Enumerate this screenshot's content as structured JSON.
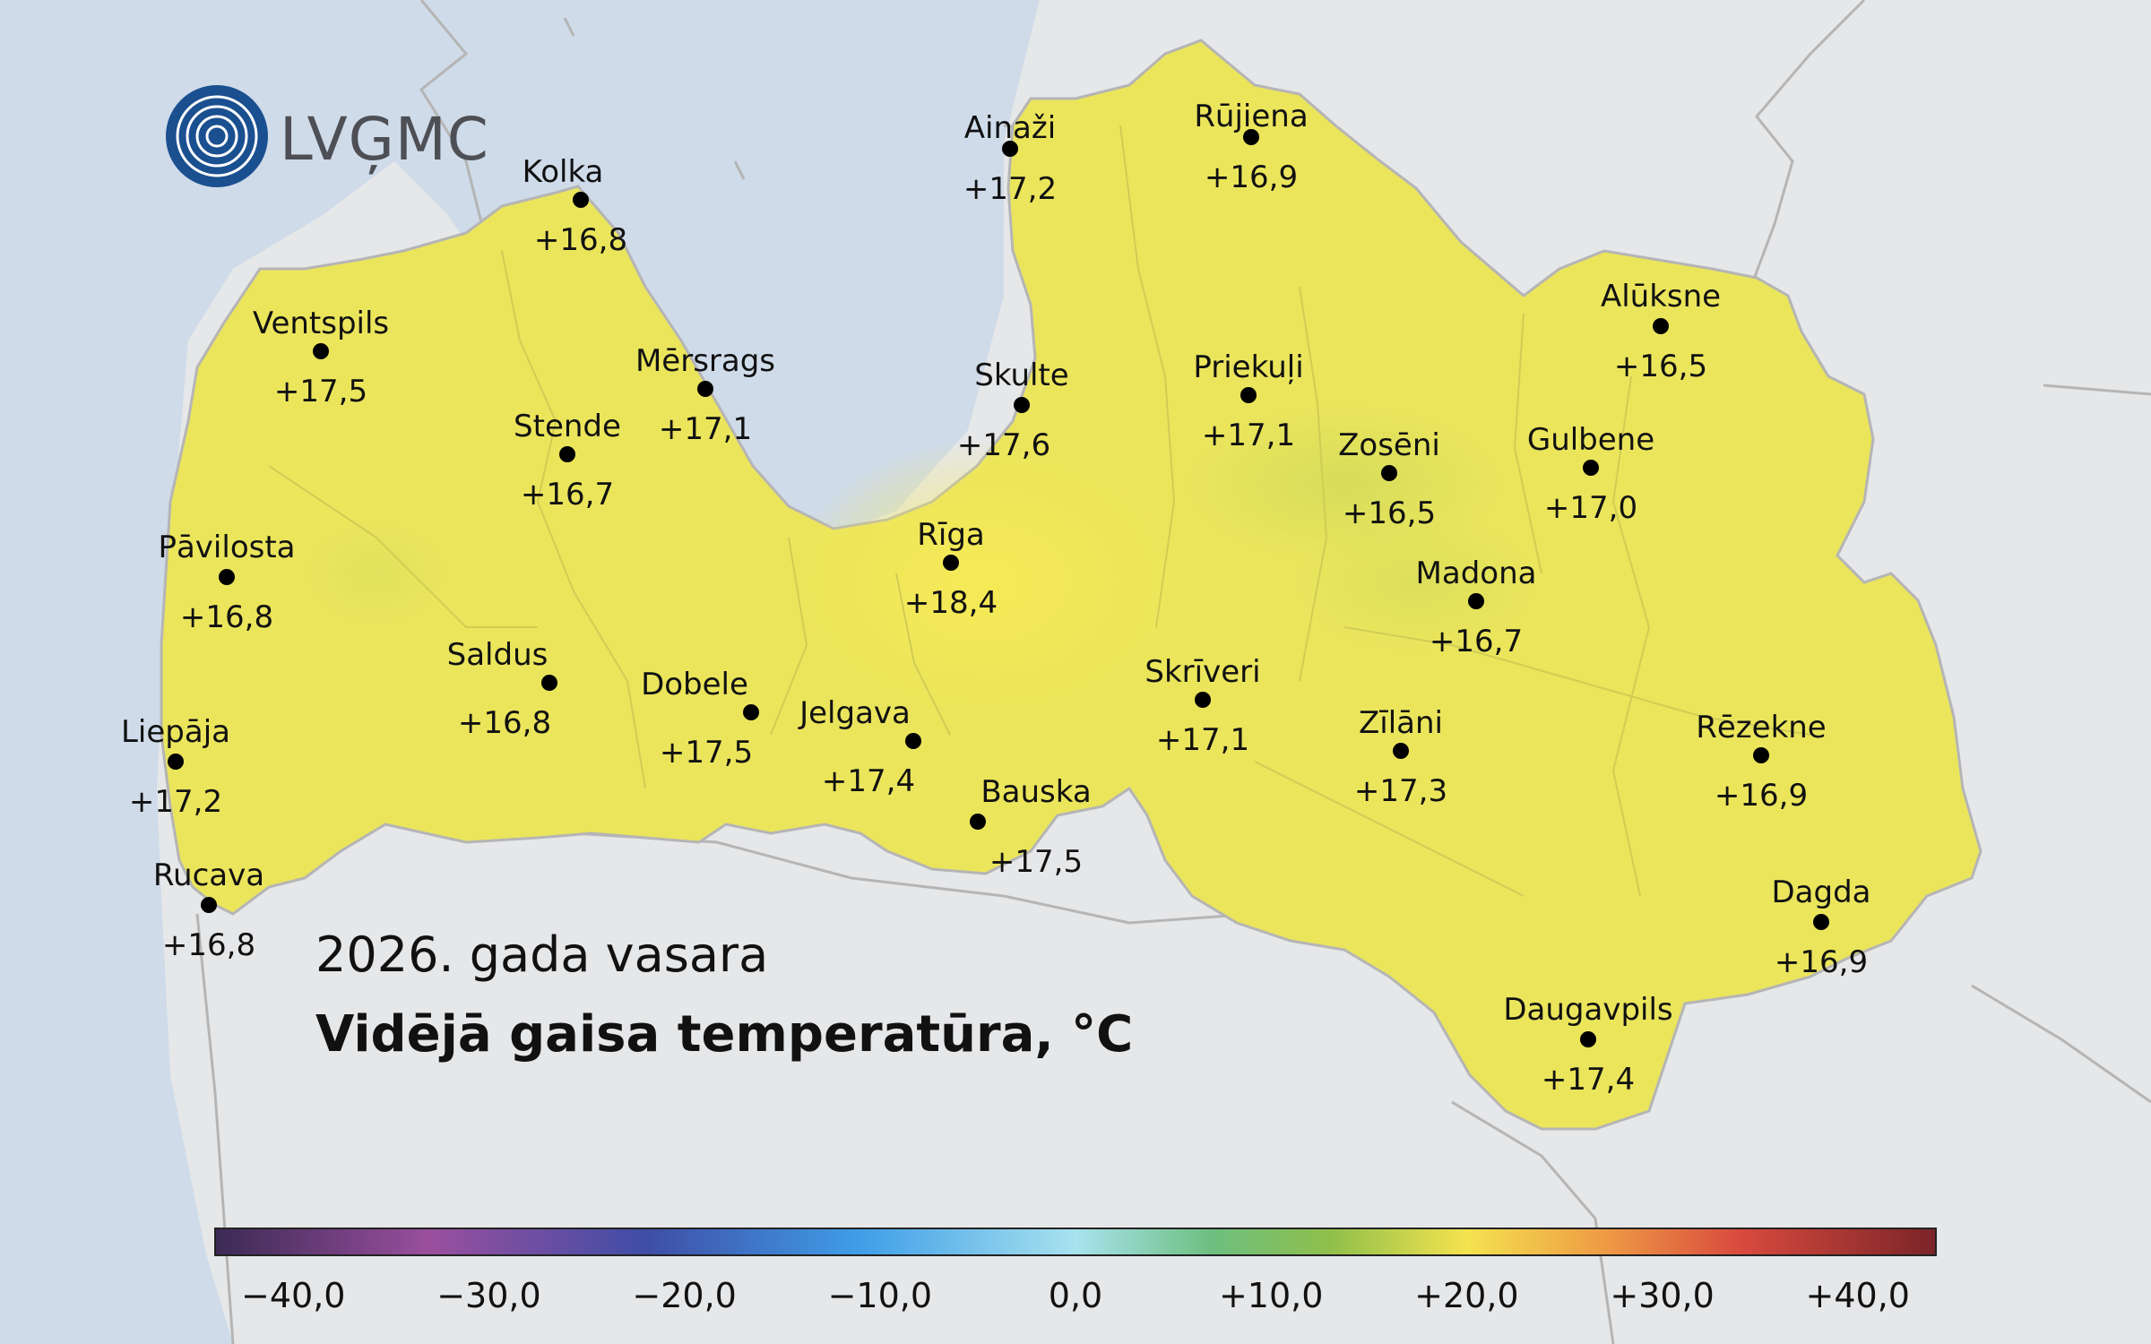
{
  "logo": {
    "text": "LVĢMC",
    "icon": "wave-circle-logo"
  },
  "subtitle": "2026. gada vasara",
  "title": "Vidējā gaisa temperatūra, °C",
  "colors": {
    "sea": "#cfdbe9",
    "land_other": "#e6e7e9",
    "latvia_fill": "#ebe55c",
    "border": "#b5b5b5"
  },
  "stations": [
    {
      "name": "Ainaži",
      "value": "+17,2"
    },
    {
      "name": "Rūjiena",
      "value": "+16,9"
    },
    {
      "name": "Kolka",
      "value": "+16,8"
    },
    {
      "name": "Ventspils",
      "value": "+17,5"
    },
    {
      "name": "Mērsrags",
      "value": "+17,1"
    },
    {
      "name": "Skulte",
      "value": "+17,6"
    },
    {
      "name": "Priekuļi",
      "value": "+17,1"
    },
    {
      "name": "Alūksne",
      "value": "+16,5"
    },
    {
      "name": "Stende",
      "value": "+16,7"
    },
    {
      "name": "Zosēni",
      "value": "+16,5"
    },
    {
      "name": "Gulbene",
      "value": "+17,0"
    },
    {
      "name": "Pāvilosta",
      "value": "+16,8"
    },
    {
      "name": "Rīga",
      "value": "+18,4"
    },
    {
      "name": "Madona",
      "value": "+16,7"
    },
    {
      "name": "Saldus",
      "value": "+16,8"
    },
    {
      "name": "Dobele",
      "value": "+17,5"
    },
    {
      "name": "Skrīveri",
      "value": "+17,1"
    },
    {
      "name": "Jelgava",
      "value": "+17,4"
    },
    {
      "name": "Zīlāni",
      "value": "+17,3"
    },
    {
      "name": "Rēzekne",
      "value": "+16,9"
    },
    {
      "name": "Liepāja",
      "value": "+17,2"
    },
    {
      "name": "Bauska",
      "value": "+17,5"
    },
    {
      "name": "Rucava",
      "value": "+16,8"
    },
    {
      "name": "Dagda",
      "value": "+16,9"
    },
    {
      "name": "Daugavpils",
      "value": "+17,4"
    }
  ],
  "colorbar": {
    "min": -44,
    "max": 44,
    "ticks": [
      {
        "value": -40,
        "label": "−40,0"
      },
      {
        "value": -30,
        "label": "−30,0"
      },
      {
        "value": -20,
        "label": "−20,0"
      },
      {
        "value": -10,
        "label": "−10,0"
      },
      {
        "value": 0,
        "label": "0,0"
      },
      {
        "value": 10,
        "label": "+10,0"
      },
      {
        "value": 20,
        "label": "+20,0"
      },
      {
        "value": 30,
        "label": "+30,0"
      },
      {
        "value": 40,
        "label": "+40,0"
      }
    ],
    "stops": [
      {
        "value": -44,
        "color": "#3b2a54"
      },
      {
        "value": -33,
        "color": "#9a4f9e"
      },
      {
        "value": -22,
        "color": "#3f4da6"
      },
      {
        "value": -11,
        "color": "#3f9ee8"
      },
      {
        "value": 0,
        "color": "#a8e2ee"
      },
      {
        "value": 7,
        "color": "#6dbf7f"
      },
      {
        "value": 13,
        "color": "#8fbf4a"
      },
      {
        "value": 20,
        "color": "#f4e34f"
      },
      {
        "value": 27,
        "color": "#ee9b44"
      },
      {
        "value": 34,
        "color": "#d94a3e"
      },
      {
        "value": 44,
        "color": "#7a2428"
      }
    ]
  }
}
